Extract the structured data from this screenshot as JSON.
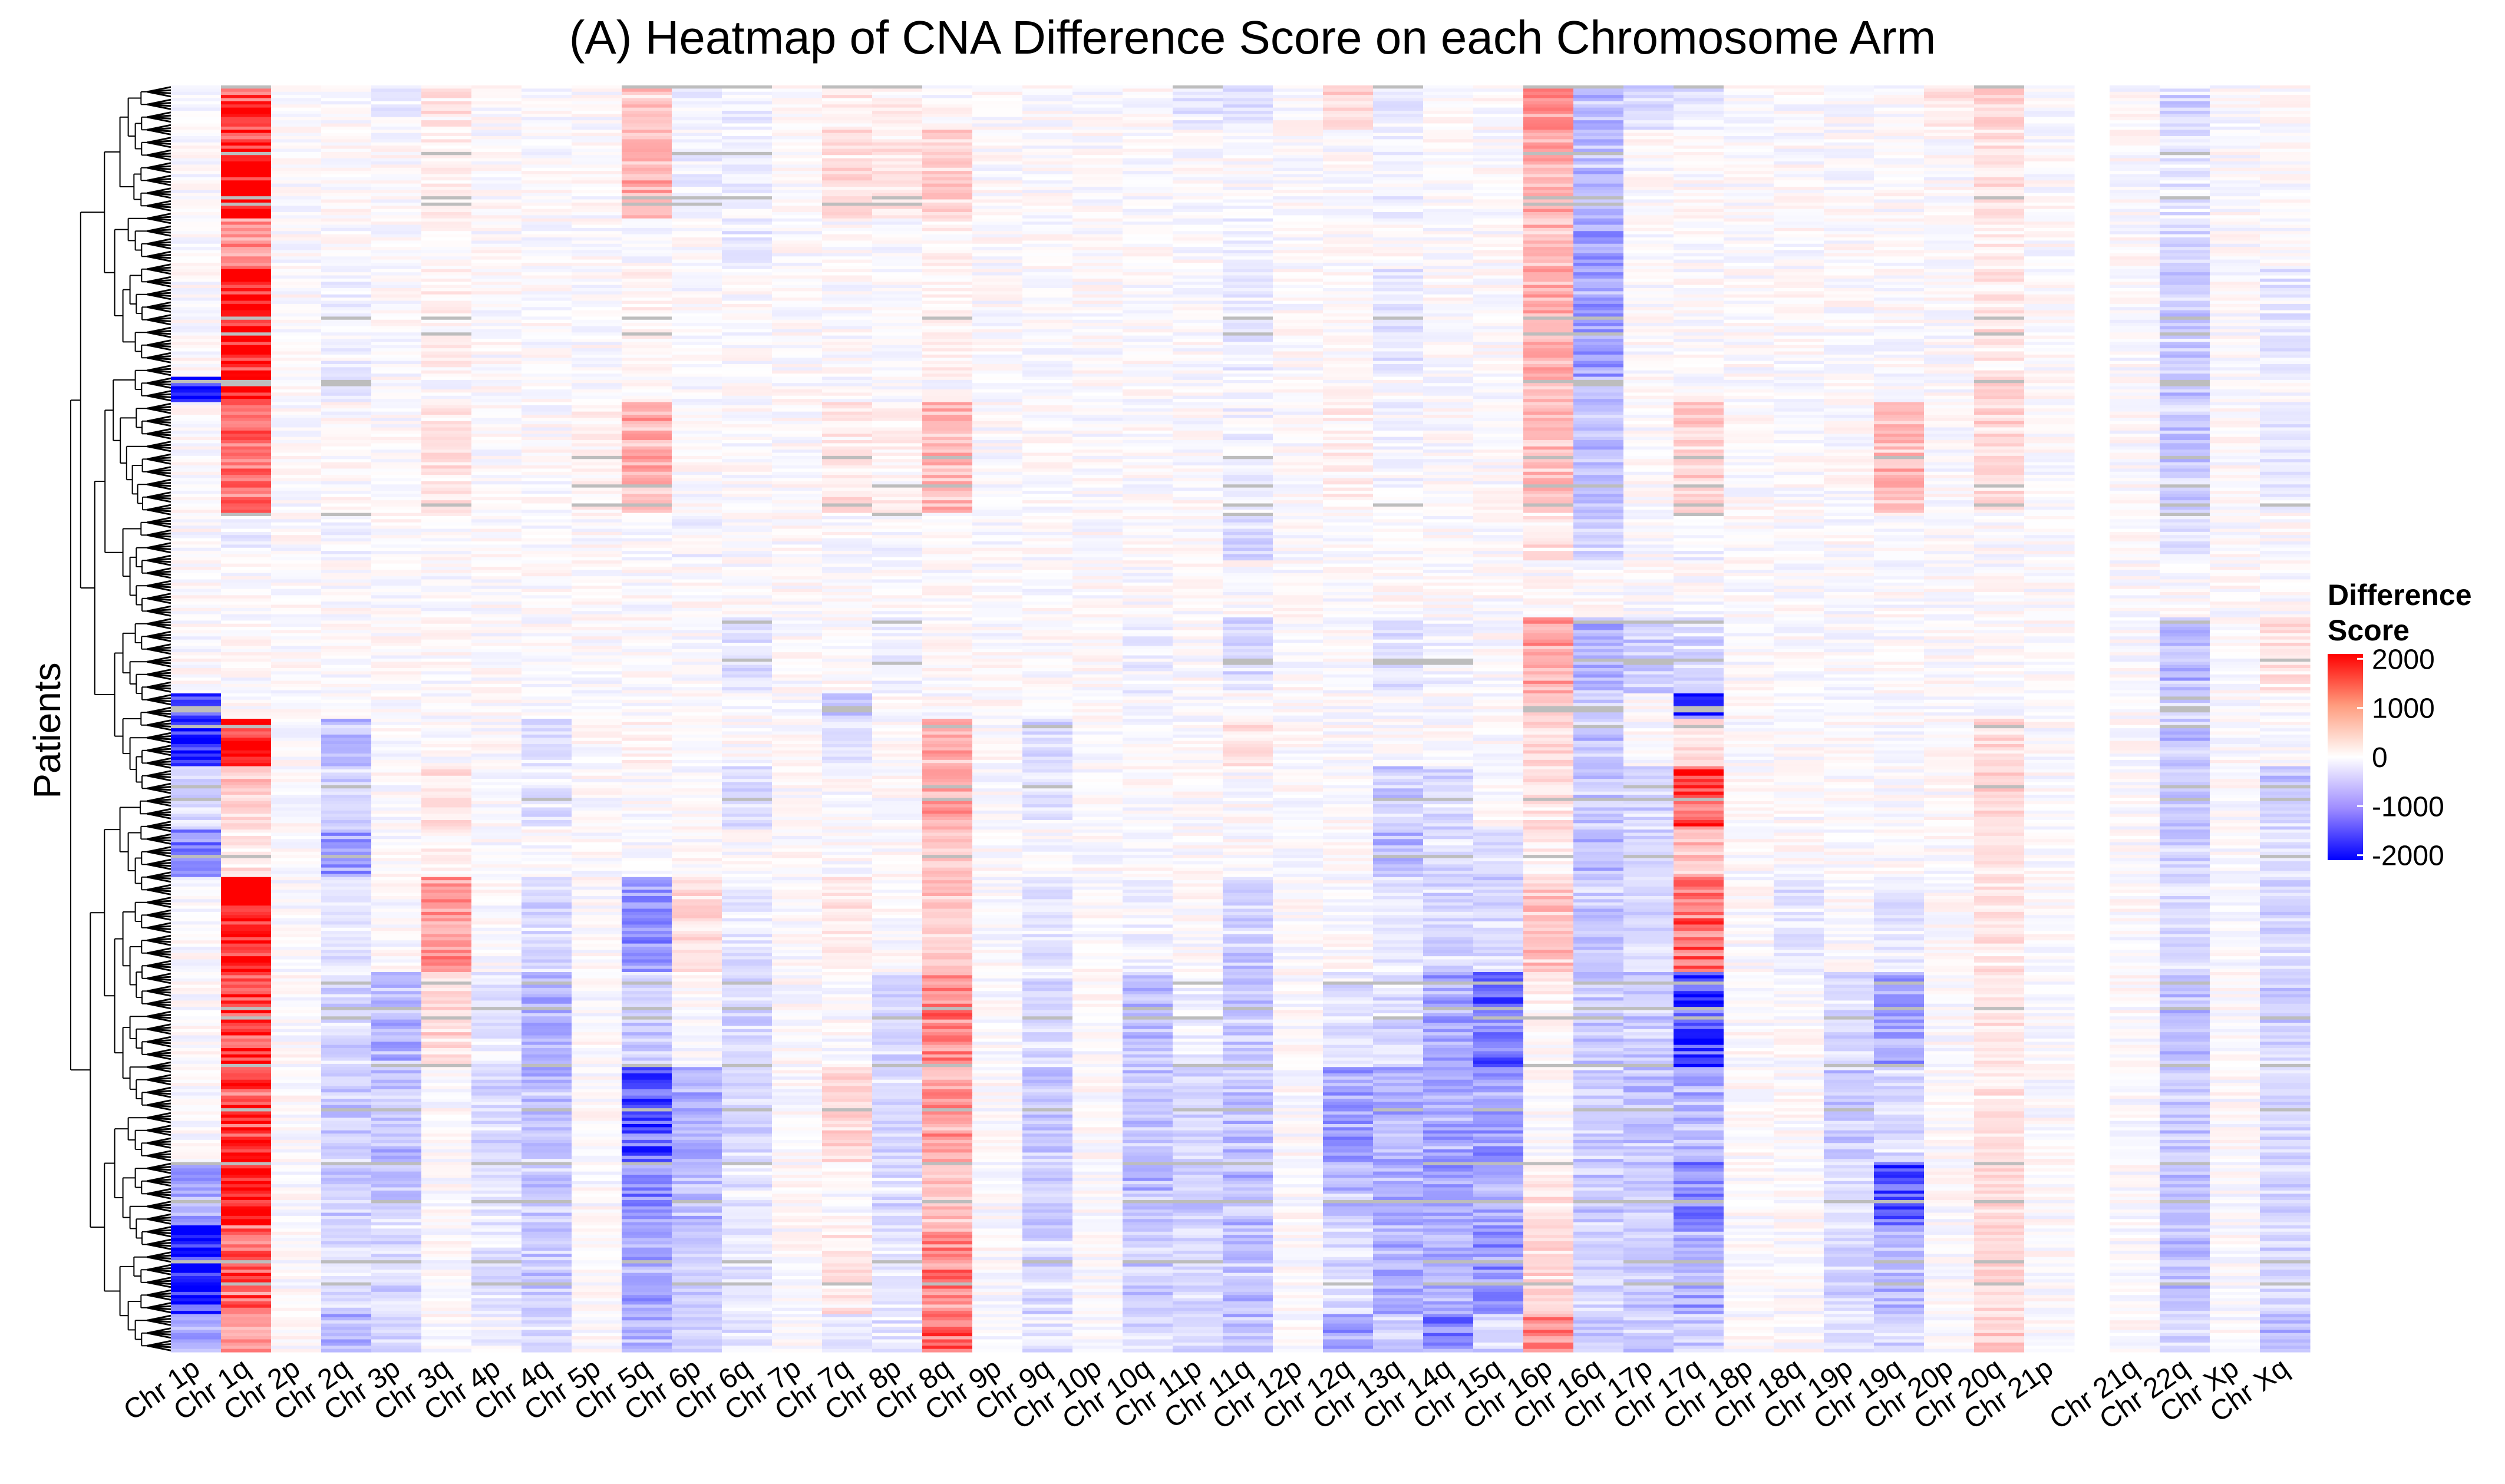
{
  "chart_data": {
    "type": "heatmap",
    "title": "(A) Heatmap of CNA Difference Score on each Chromosome Arm",
    "ylabel": "Patients",
    "xlabel": "",
    "columns": [
      "Chr 1p",
      "Chr 1q",
      "Chr 2p",
      "Chr 2q",
      "Chr 3p",
      "Chr 3q",
      "Chr 4p",
      "Chr 4q",
      "Chr 5p",
      "Chr 5q",
      "Chr 6p",
      "Chr 6q",
      "Chr 7p",
      "Chr 7q",
      "Chr 8p",
      "Chr 8q",
      "Chr 9p",
      "Chr 9q",
      "Chr 10p",
      "Chr 10q",
      "Chr 11p",
      "Chr 11q",
      "Chr 12p",
      "Chr 12q",
      "Chr 13q",
      "Chr 14q",
      "Chr 15q",
      "Chr 16p",
      "Chr 16q",
      "Chr 17p",
      "Chr 17q",
      "Chr 18p",
      "Chr 18q",
      "Chr 19p",
      "Chr 19q",
      "Chr 20p",
      "Chr 20q",
      "Chr 21p",
      "Chr 21q",
      "Chr 22q",
      "Chr Xp",
      "Chr Xq"
    ],
    "row_bands": [
      {
        "rows": [
          0,
          14
        ],
        "values": [
          0,
          1500,
          0,
          0,
          -100,
          200,
          0,
          0,
          0,
          400,
          -100,
          -100,
          0,
          200,
          100,
          0,
          0,
          0,
          0,
          0,
          -200,
          -200,
          0,
          300,
          -200,
          0,
          0,
          1000,
          -500,
          -300,
          -200,
          0,
          0,
          0,
          0,
          200,
          300,
          0,
          0,
          -300,
          0,
          0
        ]
      },
      {
        "rows": [
          14,
          42
        ],
        "values": [
          0,
          2100,
          0,
          0,
          0,
          100,
          0,
          0,
          0,
          600,
          -100,
          -100,
          0,
          300,
          200,
          400,
          0,
          0,
          0,
          0,
          0,
          0,
          0,
          0,
          -100,
          0,
          0,
          600,
          -500,
          0,
          0,
          0,
          0,
          0,
          0,
          0,
          200,
          0,
          0,
          -200,
          0,
          0
        ]
      },
      {
        "rows": [
          42,
          58
        ],
        "values": [
          0,
          1000,
          0,
          0,
          0,
          0,
          0,
          0,
          0,
          0,
          0,
          -200,
          0,
          0,
          0,
          100,
          0,
          0,
          0,
          0,
          0,
          -100,
          0,
          0,
          0,
          0,
          0,
          500,
          -800,
          0,
          0,
          0,
          0,
          0,
          0,
          0,
          100,
          0,
          0,
          -300,
          0,
          0
        ]
      },
      {
        "rows": [
          58,
          92
        ],
        "values": [
          0,
          2200,
          0,
          -100,
          0,
          100,
          0,
          0,
          0,
          100,
          0,
          0,
          0,
          0,
          0,
          100,
          0,
          0,
          0,
          0,
          0,
          -200,
          0,
          0,
          -200,
          0,
          0,
          700,
          -800,
          0,
          0,
          0,
          0,
          0,
          0,
          0,
          200,
          0,
          0,
          -400,
          0,
          -200
        ]
      },
      {
        "rows": [
          92,
          100
        ],
        "values": [
          -2000,
          2200,
          0,
          -200,
          0,
          0,
          0,
          0,
          0,
          0,
          0,
          0,
          0,
          0,
          0,
          0,
          0,
          0,
          0,
          0,
          0,
          0,
          0,
          0,
          0,
          0,
          0,
          500,
          -600,
          0,
          0,
          0,
          0,
          0,
          0,
          0,
          300,
          0,
          0,
          -500,
          0,
          0
        ]
      },
      {
        "rows": [
          100,
          135
        ],
        "values": [
          0,
          1200,
          0,
          0,
          0,
          200,
          0,
          0,
          100,
          700,
          0,
          0,
          0,
          200,
          100,
          600,
          0,
          0,
          0,
          0,
          0,
          -100,
          0,
          100,
          -100,
          0,
          0,
          500,
          -500,
          0,
          400,
          0,
          0,
          0,
          600,
          0,
          300,
          0,
          0,
          -400,
          0,
          -200
        ]
      },
      {
        "rows": [
          135,
          150
        ],
        "values": [
          0,
          -100,
          0,
          -100,
          0,
          0,
          0,
          0,
          0,
          0,
          -100,
          0,
          0,
          0,
          -100,
          0,
          0,
          0,
          0,
          0,
          0,
          -300,
          0,
          0,
          0,
          0,
          0,
          200,
          -300,
          0,
          -100,
          0,
          0,
          0,
          0,
          0,
          0,
          0,
          0,
          -200,
          0,
          0
        ]
      },
      {
        "rows": [
          150,
          168
        ],
        "values": [
          0,
          0,
          0,
          0,
          0,
          0,
          0,
          0,
          0,
          0,
          0,
          0,
          0,
          0,
          0,
          0,
          0,
          0,
          0,
          0,
          0,
          0,
          0,
          0,
          0,
          0,
          0,
          0,
          0,
          0,
          0,
          0,
          0,
          0,
          0,
          0,
          0,
          0,
          0,
          0,
          0,
          0
        ]
      },
      {
        "rows": [
          168,
          192
        ],
        "values": [
          0,
          0,
          0,
          0,
          0,
          0,
          0,
          0,
          0,
          0,
          0,
          -200,
          0,
          0,
          -100,
          0,
          0,
          0,
          0,
          -100,
          0,
          -300,
          0,
          0,
          -200,
          -100,
          0,
          800,
          -600,
          -400,
          -300,
          0,
          0,
          0,
          0,
          0,
          0,
          0,
          0,
          -600,
          0,
          200
        ]
      },
      {
        "rows": [
          192,
          200
        ],
        "values": [
          -1500,
          0,
          0,
          0,
          0,
          0,
          0,
          0,
          0,
          0,
          0,
          0,
          0,
          -500,
          0,
          0,
          0,
          0,
          0,
          0,
          0,
          0,
          0,
          0,
          0,
          0,
          0,
          500,
          -400,
          0,
          -1500,
          0,
          0,
          0,
          0,
          0,
          0,
          0,
          0,
          -400,
          0,
          0
        ]
      },
      {
        "rows": [
          200,
          215
        ],
        "values": [
          -2100,
          1900,
          0,
          -600,
          0,
          0,
          0,
          -300,
          0,
          100,
          0,
          0,
          0,
          -200,
          0,
          600,
          0,
          -300,
          0,
          0,
          0,
          200,
          0,
          0,
          0,
          0,
          0,
          300,
          -500,
          0,
          300,
          0,
          0,
          0,
          0,
          0,
          300,
          0,
          0,
          -500,
          0,
          0
        ]
      },
      {
        "rows": [
          215,
          235
        ],
        "values": [
          -300,
          400,
          0,
          -300,
          0,
          200,
          0,
          -200,
          0,
          0,
          0,
          -300,
          0,
          0,
          0,
          700,
          0,
          -200,
          0,
          0,
          0,
          0,
          0,
          0,
          -400,
          -300,
          0,
          200,
          -400,
          -300,
          1500,
          0,
          0,
          0,
          0,
          0,
          300,
          0,
          0,
          -400,
          0,
          -400
        ]
      },
      {
        "rows": [
          235,
          250
        ],
        "values": [
          -1000,
          200,
          0,
          -800,
          0,
          100,
          0,
          0,
          0,
          0,
          0,
          0,
          0,
          0,
          0,
          400,
          0,
          0,
          0,
          0,
          0,
          0,
          0,
          0,
          -600,
          -300,
          -300,
          100,
          -500,
          -300,
          500,
          0,
          0,
          0,
          0,
          0,
          200,
          0,
          0,
          -500,
          0,
          -200
        ]
      },
      {
        "rows": [
          250,
          280
        ],
        "values": [
          0,
          2000,
          0,
          -200,
          0,
          800,
          0,
          -300,
          0,
          -800,
          300,
          -200,
          0,
          200,
          0,
          400,
          0,
          -200,
          0,
          -100,
          0,
          -400,
          0,
          0,
          -200,
          -300,
          -300,
          500,
          -500,
          -300,
          1200,
          0,
          -200,
          0,
          -200,
          0,
          200,
          0,
          0,
          -300,
          0,
          -300
        ]
      },
      {
        "rows": [
          280,
          310
        ],
        "values": [
          0,
          1700,
          0,
          -300,
          -600,
          300,
          -200,
          -600,
          0,
          -400,
          0,
          -300,
          0,
          0,
          -300,
          1000,
          0,
          -300,
          0,
          -500,
          -100,
          -400,
          0,
          -200,
          -300,
          -700,
          -1200,
          100,
          -400,
          -400,
          -1500,
          0,
          0,
          -300,
          -800,
          0,
          200,
          0,
          0,
          -500,
          0,
          -400
        ]
      },
      {
        "rows": [
          310,
          340
        ],
        "values": [
          0,
          1600,
          0,
          -400,
          -500,
          0,
          -300,
          -500,
          0,
          -1400,
          -600,
          -300,
          0,
          300,
          -300,
          800,
          0,
          -400,
          0,
          -500,
          -300,
          -500,
          0,
          -800,
          -600,
          -700,
          -800,
          0,
          -400,
          -500,
          -600,
          0,
          0,
          -400,
          -300,
          0,
          200,
          0,
          0,
          -400,
          0,
          -300
        ]
      },
      {
        "rows": [
          340,
          360
        ],
        "values": [
          -700,
          1900,
          0,
          -400,
          -400,
          0,
          -200,
          -400,
          0,
          -900,
          -500,
          -200,
          0,
          0,
          -300,
          500,
          0,
          -400,
          0,
          -600,
          -400,
          -600,
          0,
          -500,
          -700,
          -800,
          -600,
          200,
          -400,
          -400,
          -1000,
          0,
          0,
          -300,
          -1500,
          0,
          300,
          0,
          0,
          -500,
          0,
          -300
        ]
      },
      {
        "rows": [
          360,
          388
        ],
        "values": [
          -2000,
          1300,
          0,
          -300,
          -300,
          0,
          -200,
          -400,
          0,
          -700,
          -400,
          -200,
          0,
          200,
          -200,
          1000,
          0,
          -300,
          0,
          -400,
          -300,
          -500,
          0,
          -300,
          -600,
          -600,
          -900,
          300,
          -300,
          -400,
          -700,
          0,
          0,
          -300,
          -600,
          0,
          300,
          0,
          0,
          -500,
          0,
          -300
        ]
      },
      {
        "rows": [
          388,
          400
        ],
        "values": [
          -600,
          800,
          0,
          -600,
          -300,
          0,
          -100,
          -300,
          0,
          -600,
          -300,
          -200,
          0,
          -200,
          -200,
          1200,
          0,
          -200,
          0,
          -300,
          -300,
          -600,
          0,
          -700,
          -400,
          -1000,
          -300,
          1000,
          -400,
          -400,
          -400,
          0,
          0,
          -200,
          -300,
          0,
          400,
          0,
          0,
          -400,
          0,
          -500
        ]
      }
    ],
    "n_rows": 400,
    "legend": {
      "title": "Difference Score",
      "ticks": [
        2000,
        1000,
        0,
        -1000,
        -2000
      ],
      "range": [
        -2100,
        2100
      ],
      "colors": {
        "low": "#0000ff",
        "mid": "#ffffff",
        "high": "#ff0000"
      }
    },
    "dendrogram": "left",
    "missing_color": "#bdbdbd"
  }
}
